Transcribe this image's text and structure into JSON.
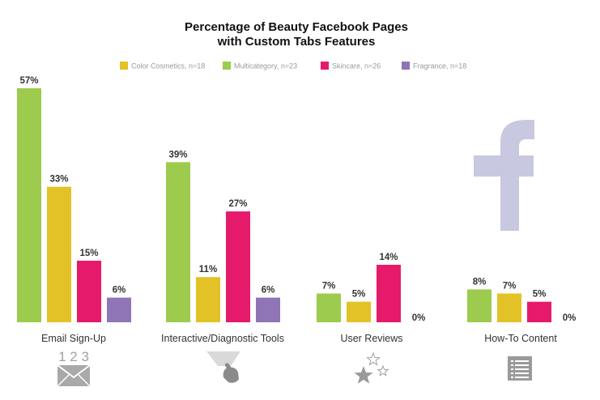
{
  "colors": {
    "color_cosmetics": "#E2C227",
    "multicategory": "#9CCB4E",
    "skincare": "#E51A6B",
    "fragrance": "#8F74B6",
    "zero_label": "#8F74B6",
    "facebook_logo": "#C8C8E0",
    "icon_gray": "#A0A0A0"
  },
  "icons": {
    "email": "envelope-icon",
    "tools": "pointing-hand-icon",
    "reviews": "stars-icon",
    "howto": "document-icon",
    "brand": "facebook-logo-icon"
  },
  "email_icon_text": "1 2 3",
  "chart_data": {
    "type": "bar",
    "title": "Percentage of Beauty Facebook Pages with Custom Tabs Features",
    "title_lines": [
      "Percentage of Beauty Facebook Pages",
      "with Custom Tabs Features"
    ],
    "categories": [
      "Email Sign-Up",
      "Interactive/Diagnostic Tools",
      "User Reviews",
      "How-To Content"
    ],
    "legend_order": [
      "Color Cosmetics, n=18",
      "Multicategory, n=23",
      "Skincare, n=26",
      "Fragrance, n=18"
    ],
    "legend_position": "top-center",
    "series": [
      {
        "name": "Multicategory, n=23",
        "key": "multicategory",
        "values": [
          57,
          39,
          7,
          8
        ]
      },
      {
        "name": "Color Cosmetics, n=18",
        "key": "color_cosmetics",
        "values": [
          33,
          11,
          5,
          7
        ]
      },
      {
        "name": "Skincare, n=26",
        "key": "skincare",
        "values": [
          15,
          27,
          14,
          5
        ]
      },
      {
        "name": "Fragrance, n=18",
        "key": "fragrance",
        "values": [
          6,
          6,
          0,
          0
        ]
      }
    ],
    "value_suffix": "%",
    "ylim": [
      0,
      57
    ],
    "grid": false,
    "xlabel": "",
    "ylabel": ""
  }
}
